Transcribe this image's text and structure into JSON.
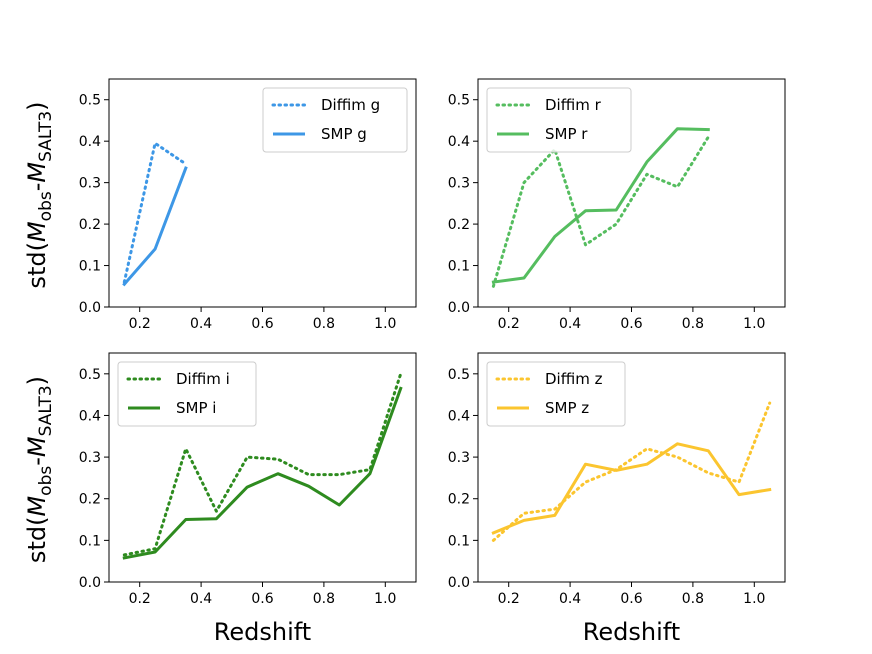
{
  "chart_data": [
    {
      "type": "line",
      "xlim": [
        0.1,
        1.1
      ],
      "ylim": [
        0.0,
        0.55
      ],
      "xticks": [
        "0.2",
        "0.4",
        "0.6",
        "0.8",
        "1.0"
      ],
      "yticks": [
        "0.0",
        "0.1",
        "0.2",
        "0.3",
        "0.4",
        "0.5"
      ],
      "ylabel": "std(M_obs-M_SALT3)",
      "xlabel": "",
      "legend_position": "top-right",
      "series": [
        {
          "name": "Diffim g",
          "style": "dotted",
          "color": "#3d97e6",
          "x": [
            0.15,
            0.25,
            0.35
          ],
          "values": [
            0.06,
            0.395,
            0.345
          ]
        },
        {
          "name": "SMP g",
          "style": "solid",
          "color": "#3d97e6",
          "x": [
            0.15,
            0.25,
            0.35
          ],
          "values": [
            0.055,
            0.14,
            0.335
          ]
        }
      ]
    },
    {
      "type": "line",
      "xlim": [
        0.1,
        1.1
      ],
      "ylim": [
        0.0,
        0.55
      ],
      "xticks": [
        "0.2",
        "0.4",
        "0.6",
        "0.8",
        "1.0"
      ],
      "yticks": [
        "0.0",
        "0.1",
        "0.2",
        "0.3",
        "0.4",
        "0.5"
      ],
      "ylabel": "",
      "xlabel": "",
      "legend_position": "top-left",
      "series": [
        {
          "name": "Diffim r",
          "style": "dotted",
          "color": "#55bd5f",
          "x": [
            0.15,
            0.25,
            0.35,
            0.45,
            0.55,
            0.65,
            0.75,
            0.85
          ],
          "values": [
            0.05,
            0.3,
            0.38,
            0.15,
            0.2,
            0.32,
            0.29,
            0.41
          ]
        },
        {
          "name": "SMP r",
          "style": "solid",
          "color": "#55bd5f",
          "x": [
            0.15,
            0.25,
            0.35,
            0.45,
            0.55,
            0.65,
            0.75,
            0.85
          ],
          "values": [
            0.06,
            0.07,
            0.17,
            0.232,
            0.234,
            0.35,
            0.43,
            0.428
          ]
        }
      ]
    },
    {
      "type": "line",
      "xlim": [
        0.1,
        1.1
      ],
      "ylim": [
        0.0,
        0.55
      ],
      "xticks": [
        "0.2",
        "0.4",
        "0.6",
        "0.8",
        "1.0"
      ],
      "yticks": [
        "0.0",
        "0.1",
        "0.2",
        "0.3",
        "0.4",
        "0.5"
      ],
      "ylabel": "std(M_obs-M_SALT3)",
      "xlabel": "Redshift",
      "legend_position": "top-left",
      "series": [
        {
          "name": "Diffim i",
          "style": "dotted",
          "color": "#2e8b1f",
          "x": [
            0.15,
            0.25,
            0.35,
            0.45,
            0.55,
            0.65,
            0.75,
            0.85,
            0.95,
            1.05
          ],
          "values": [
            0.065,
            0.08,
            0.32,
            0.17,
            0.3,
            0.295,
            0.258,
            0.258,
            0.27,
            0.5
          ]
        },
        {
          "name": "SMP i",
          "style": "solid",
          "color": "#2e8b1f",
          "x": [
            0.15,
            0.25,
            0.35,
            0.45,
            0.55,
            0.65,
            0.75,
            0.85,
            0.95,
            1.05
          ],
          "values": [
            0.058,
            0.072,
            0.15,
            0.152,
            0.228,
            0.26,
            0.23,
            0.185,
            0.26,
            0.465
          ]
        }
      ]
    },
    {
      "type": "line",
      "xlim": [
        0.1,
        1.1
      ],
      "ylim": [
        0.0,
        0.55
      ],
      "xticks": [
        "0.2",
        "0.4",
        "0.6",
        "0.8",
        "1.0"
      ],
      "yticks": [
        "0.0",
        "0.1",
        "0.2",
        "0.3",
        "0.4",
        "0.5"
      ],
      "ylabel": "",
      "xlabel": "Redshift",
      "legend_position": "top-left",
      "series": [
        {
          "name": "Diffim z",
          "style": "dotted",
          "color": "#fbc52f",
          "x": [
            0.15,
            0.25,
            0.35,
            0.45,
            0.55,
            0.65,
            0.75,
            0.85,
            0.95,
            1.05
          ],
          "values": [
            0.1,
            0.165,
            0.175,
            0.24,
            0.27,
            0.32,
            0.3,
            0.262,
            0.24,
            0.43
          ]
        },
        {
          "name": "SMP z",
          "style": "solid",
          "color": "#fbc52f",
          "x": [
            0.15,
            0.25,
            0.35,
            0.45,
            0.55,
            0.65,
            0.75,
            0.85,
            0.95,
            1.05
          ],
          "values": [
            0.118,
            0.148,
            0.16,
            0.283,
            0.268,
            0.283,
            0.332,
            0.315,
            0.21,
            0.222
          ]
        }
      ]
    }
  ]
}
